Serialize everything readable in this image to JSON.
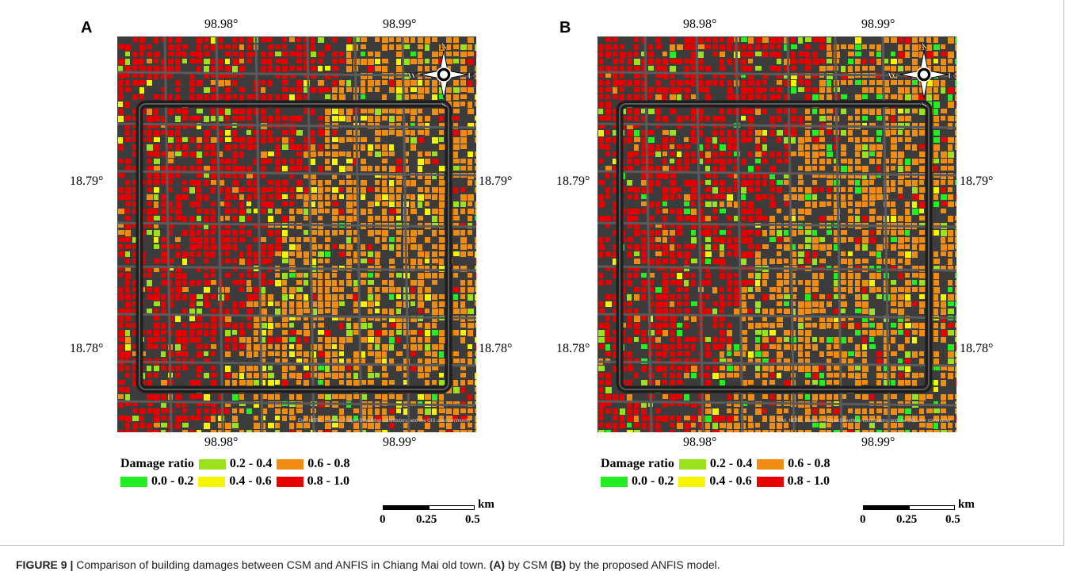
{
  "panels": [
    {
      "letter": "A",
      "lon_ticks": [
        "98.98°",
        "98.99°"
      ],
      "lat_ticks": [
        "18.79°",
        "18.78°"
      ],
      "compass": {
        "n": "N",
        "s": "S",
        "e": "E",
        "w": "W"
      },
      "attribution": "Esri, HERE, Garmin, © OpenStreetMap contributors, and the GIS user community"
    },
    {
      "letter": "B",
      "lon_ticks": [
        "98.98°",
        "98.99°"
      ],
      "lat_ticks": [
        "18.79°",
        "18.78°"
      ],
      "compass": {
        "n": "N",
        "s": "S",
        "e": "E",
        "w": "W"
      },
      "attribution": "Esri, HERE, Garmin, © OpenStreetMap contributors, and the GIS user community"
    }
  ],
  "legend": {
    "title": "Damage ratio",
    "classes": [
      {
        "label": "0.0 - 0.2",
        "color": "#22ee22"
      },
      {
        "label": "0.2 - 0.4",
        "color": "#9be21c"
      },
      {
        "label": "0.4 - 0.6",
        "color": "#f5f500"
      },
      {
        "label": "0.6 - 0.8",
        "color": "#f08c10"
      },
      {
        "label": "0.8 - 1.0",
        "color": "#e60000"
      }
    ]
  },
  "scalebar": {
    "labels": [
      "0",
      "0.25",
      "0.5"
    ],
    "unit": "km"
  },
  "caption": {
    "label": "FIGURE 9 |",
    "text_1": " Comparison of building damages between CSM and ANFIS in Chiang Mai old town. ",
    "a_ref": "(A)",
    "text_2": " by CSM ",
    "b_ref": "(B)",
    "text_3": " by the proposed ANFIS model."
  },
  "colors": {
    "road": "#3c3c3c",
    "moat": "#1e1e1e",
    "street": "#5a5a5a"
  }
}
